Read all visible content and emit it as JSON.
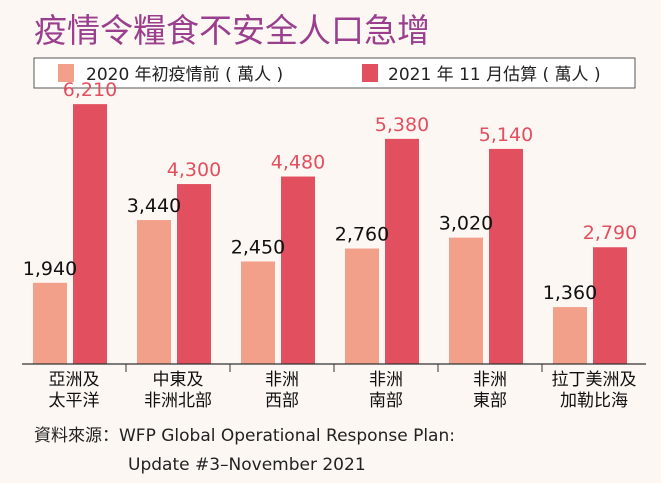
{
  "title": "疫情令糧食不安全人口急增",
  "source": {
    "line1": "資料來源：WFP Global Operational Response Plan:",
    "line2": "Update #3–November 2021"
  },
  "colors": {
    "series_2020": "#f2a08a",
    "series_2021": "#e24f5e",
    "label_2020": "#111111",
    "label_2021": "#e24f5e",
    "title": "#9a3f8d",
    "axis": "#333333",
    "background": "#fdf7f3"
  },
  "chart_data": {
    "type": "bar",
    "categories": [
      [
        "亞洲及",
        "太平洋"
      ],
      [
        "中東及",
        "非洲北部"
      ],
      [
        "非洲",
        "西部"
      ],
      [
        "非洲",
        "南部"
      ],
      [
        "非洲",
        "東部"
      ],
      [
        "拉丁美洲及",
        "加勒比海"
      ]
    ],
    "series": [
      {
        "name": "2020 年初疫情前 ( 萬人 )",
        "values": [
          1940,
          3440,
          2450,
          2760,
          3020,
          1360
        ],
        "labels": [
          "1,940",
          "3,440",
          "2,450",
          "2,760",
          "3,020",
          "1,360"
        ]
      },
      {
        "name": "2021 年 11 月估算 ( 萬人 )",
        "values": [
          6210,
          4300,
          4480,
          5380,
          5140,
          2790
        ],
        "labels": [
          "6,210",
          "4,300",
          "4,480",
          "5,380",
          "5,140",
          "2,790"
        ]
      }
    ],
    "ylim": [
      0,
      6500
    ],
    "legend": "top",
    "grid": false
  }
}
